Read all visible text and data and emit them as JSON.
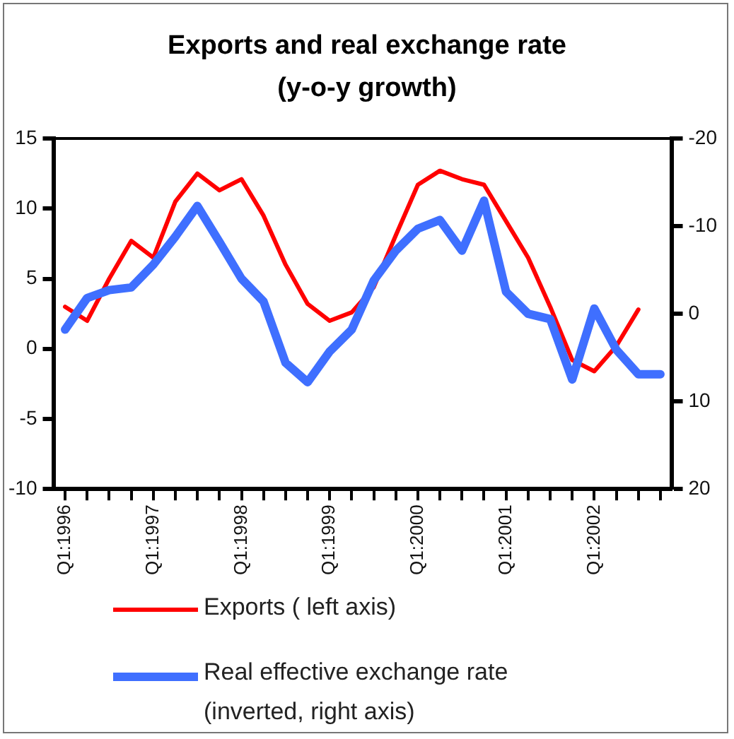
{
  "chart_data": {
    "type": "line",
    "title": "Exports and real exchange rate (y-o-y growth)",
    "categories": [
      "Q1:1996",
      null,
      null,
      null,
      "Q1:1997",
      null,
      null,
      null,
      "Q1:1998",
      null,
      null,
      null,
      "Q1:1999",
      null,
      null,
      null,
      "Q1:2000",
      null,
      null,
      null,
      "Q1:2001",
      null,
      null,
      null,
      "Q1:2002",
      null,
      null,
      null
    ],
    "series": [
      {
        "name": "Exports ( left axis)",
        "color": "#ff0000",
        "values": [
          3.0,
          2.0,
          5.0,
          7.7,
          6.5,
          10.5,
          12.5,
          11.3,
          12.1,
          9.5,
          6.0,
          3.2,
          2.0,
          2.6,
          4.4,
          8.1,
          11.7,
          12.7,
          12.1,
          11.7,
          9.1,
          6.5,
          3.0,
          -0.8,
          -1.6,
          0.2,
          2.8,
          null
        ]
      },
      {
        "name": "Real effective exchange rate (inverted, right axis)",
        "color": "#3f6fff",
        "axis": "y2",
        "values": [
          1.8,
          -1.8,
          -2.7,
          -3.0,
          -5.6,
          -8.8,
          -12.3,
          -8.2,
          -4.0,
          -1.4,
          5.6,
          7.8,
          4.3,
          1.8,
          -3.8,
          -7.2,
          -9.7,
          -10.7,
          -7.2,
          -12.9,
          -2.5,
          0.0,
          0.6,
          7.5,
          -0.6,
          4.1,
          6.9,
          6.9
        ]
      }
    ],
    "ylim": [
      -10,
      15
    ],
    "yticks": [
      -10,
      -5,
      0,
      5,
      10,
      15
    ],
    "y2lim": [
      20,
      -20
    ],
    "y2ticks": [
      20,
      10,
      0,
      -10,
      -20
    ],
    "legend": "bottom",
    "grid": false,
    "marker": "none",
    "line_style": "solid"
  }
}
